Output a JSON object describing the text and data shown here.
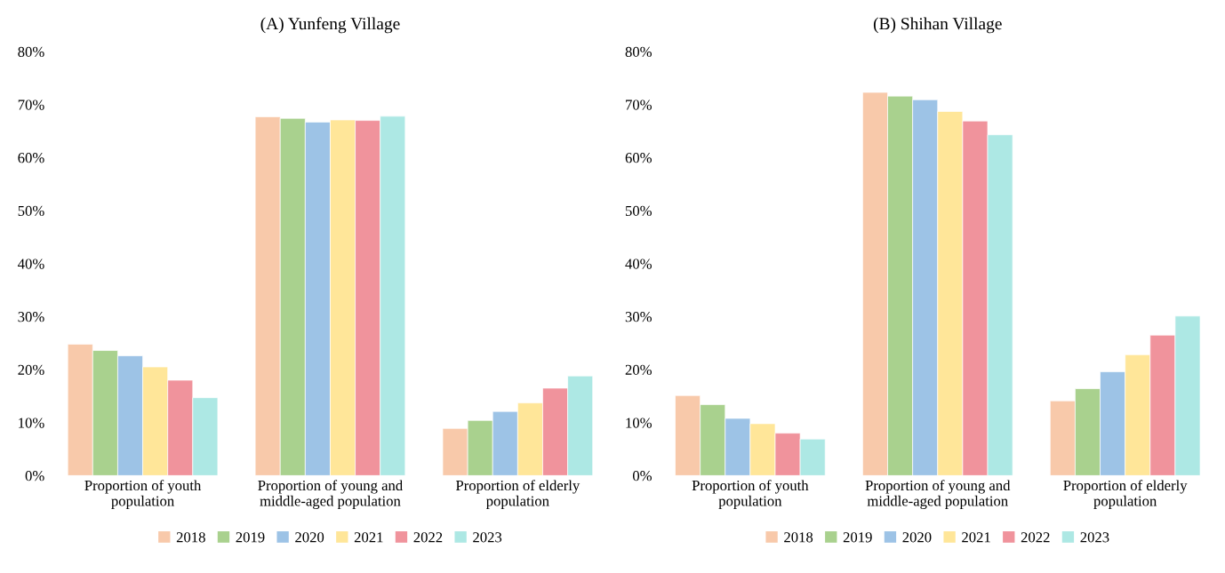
{
  "chart_data": [
    {
      "type": "bar",
      "title": "(A) Yunfeng Village",
      "categories": [
        "Proportion of youth\npopulation",
        "Proportion of young and\nmiddle-aged population",
        "Proportion of elderly\npopulation"
      ],
      "series": [
        {
          "name": "2018",
          "color": "#f8c9aa",
          "values": [
            24.8,
            67.7,
            8.9
          ]
        },
        {
          "name": "2019",
          "color": "#a9d18e",
          "values": [
            23.6,
            67.4,
            10.4
          ]
        },
        {
          "name": "2020",
          "color": "#9dc3e6",
          "values": [
            22.6,
            66.7,
            12.1
          ]
        },
        {
          "name": "2021",
          "color": "#ffe699",
          "values": [
            20.5,
            67.1,
            13.7
          ]
        },
        {
          "name": "2022",
          "color": "#f0939c",
          "values": [
            18.0,
            67.0,
            16.5
          ]
        },
        {
          "name": "2023",
          "color": "#ade8e4",
          "values": [
            14.7,
            67.8,
            18.8
          ]
        }
      ],
      "ylim": [
        0,
        80
      ],
      "yticks": [
        {
          "value": 0,
          "label": "0%"
        },
        {
          "value": 10,
          "label": "10%"
        },
        {
          "value": 20,
          "label": "20%"
        },
        {
          "value": 30,
          "label": "30%"
        },
        {
          "value": 40,
          "label": "40%"
        },
        {
          "value": 50,
          "label": "50%"
        },
        {
          "value": 60,
          "label": "60%"
        },
        {
          "value": 70,
          "label": "70%"
        },
        {
          "value": 80,
          "label": "80%"
        }
      ],
      "legend": "bottom"
    },
    {
      "type": "bar",
      "title": "(B) Shihan Village",
      "categories": [
        "Proportion of youth\npopulation",
        "Proportion of young and\nmiddle-aged population",
        "Proportion of elderly\npopulation"
      ],
      "series": [
        {
          "name": "2018",
          "color": "#f8c9aa",
          "values": [
            15.1,
            72.3,
            14.1
          ]
        },
        {
          "name": "2019",
          "color": "#a9d18e",
          "values": [
            13.4,
            71.6,
            16.4
          ]
        },
        {
          "name": "2020",
          "color": "#9dc3e6",
          "values": [
            10.8,
            70.9,
            19.6
          ]
        },
        {
          "name": "2021",
          "color": "#ffe699",
          "values": [
            9.8,
            68.7,
            22.8
          ]
        },
        {
          "name": "2022",
          "color": "#f0939c",
          "values": [
            8.0,
            66.9,
            26.5
          ]
        },
        {
          "name": "2023",
          "color": "#ade8e4",
          "values": [
            6.9,
            64.3,
            30.1
          ]
        }
      ],
      "ylim": [
        0,
        80
      ],
      "yticks": [
        {
          "value": 0,
          "label": "0%"
        },
        {
          "value": 10,
          "label": "10%"
        },
        {
          "value": 20,
          "label": "20%"
        },
        {
          "value": 30,
          "label": "30%"
        },
        {
          "value": 40,
          "label": "40%"
        },
        {
          "value": 50,
          "label": "50%"
        },
        {
          "value": 60,
          "label": "60%"
        },
        {
          "value": 70,
          "label": "70%"
        },
        {
          "value": 80,
          "label": "80%"
        }
      ],
      "legend": "bottom"
    }
  ]
}
